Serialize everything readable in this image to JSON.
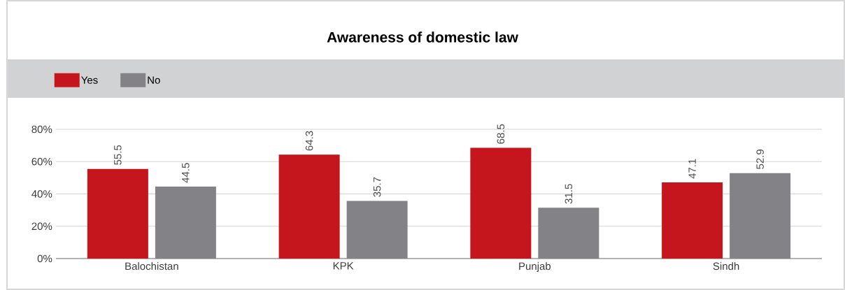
{
  "chart_data": {
    "type": "bar",
    "title": "Awareness of domestic law",
    "categories": [
      "Balochistan",
      "KPK",
      "Punjab",
      "Sindh"
    ],
    "series": [
      {
        "name": "Yes",
        "color": "#c4161c",
        "values": [
          55.5,
          64.3,
          68.5,
          47.1
        ]
      },
      {
        "name": "No",
        "color": "#838387",
        "values": [
          44.5,
          35.7,
          31.5,
          52.9
        ]
      }
    ],
    "ylim": [
      0,
      80
    ],
    "yticks": [
      {
        "value": 0,
        "label": "0%"
      },
      {
        "value": 20,
        "label": "20%"
      },
      {
        "value": 40,
        "label": "40%"
      },
      {
        "value": 60,
        "label": "60%"
      },
      {
        "value": 80,
        "label": "80%"
      }
    ],
    "grid": "y",
    "legend": "top left",
    "data_labels": true
  }
}
